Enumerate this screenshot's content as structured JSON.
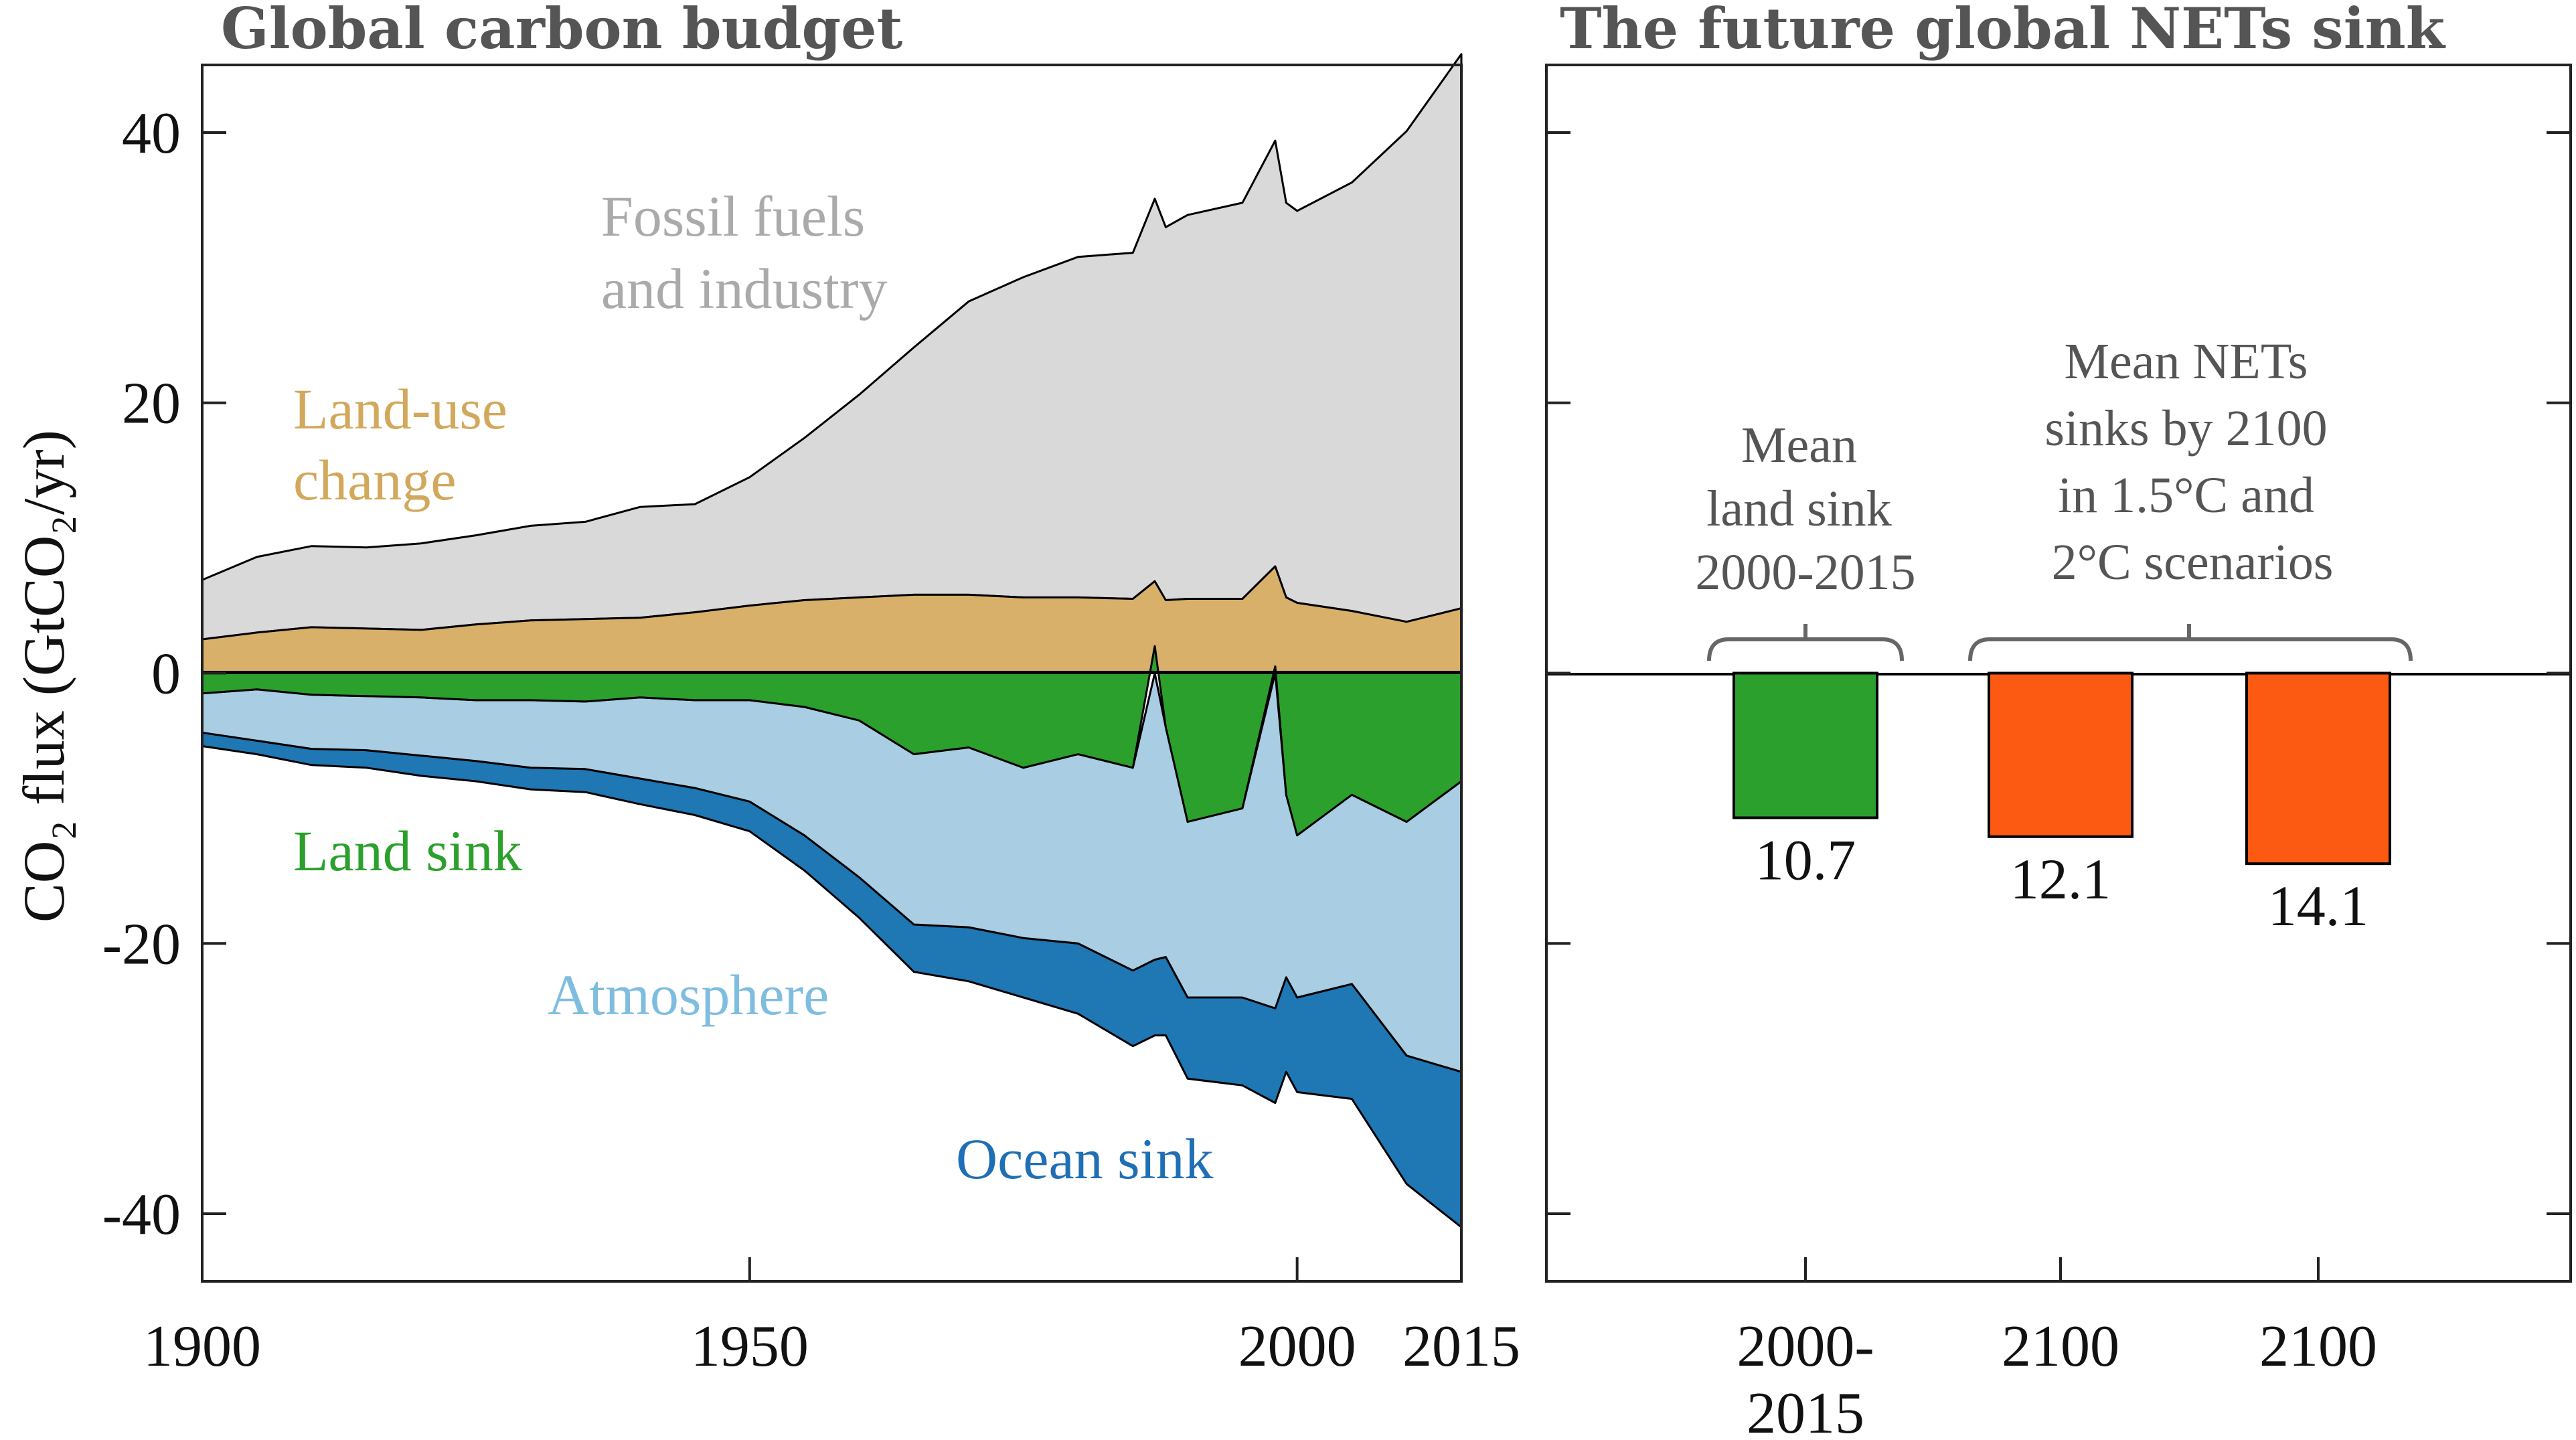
{
  "chart_data": [
    {
      "type": "area",
      "title": "Global carbon budget",
      "ylabel": "CO₂ flux (GtCO₂/yr)",
      "xlim": [
        1900,
        2015
      ],
      "ylim": [
        -45,
        45
      ],
      "xticks": [
        1900,
        1950,
        2000,
        2015
      ],
      "yticks": [
        40,
        20,
        0,
        -20,
        -40
      ],
      "annotations": {
        "fossil": [
          "Fossil fuels",
          "and industry"
        ],
        "landuse": [
          "Land-use",
          "change"
        ],
        "landsink": "Land sink",
        "atmosphere": "Atmosphere",
        "ocean": "Ocean sink"
      },
      "x": [
        1900,
        1905,
        1910,
        1915,
        1920,
        1925,
        1930,
        1935,
        1940,
        1945,
        1950,
        1955,
        1960,
        1965,
        1970,
        1975,
        1980,
        1985,
        1987,
        1988,
        1990,
        1995,
        1998,
        1999,
        2000,
        2005,
        2010,
        2015
      ],
      "series": [
        {
          "name": "Land-use change",
          "color": "#d9b06a",
          "values": [
            2.5,
            3.0,
            3.4,
            3.3,
            3.2,
            3.6,
            3.9,
            4.0,
            4.1,
            4.5,
            5.0,
            5.4,
            5.6,
            5.8,
            5.8,
            5.6,
            5.6,
            5.5,
            6.8,
            5.4,
            5.5,
            5.5,
            7.9,
            5.6,
            5.2,
            4.6,
            3.8,
            4.8
          ]
        },
        {
          "name": "Fossil fuels and industry",
          "color": "#d9d9d9",
          "values": [
            4.4,
            5.6,
            6.0,
            6.0,
            6.4,
            6.6,
            7.0,
            7.2,
            8.2,
            8.0,
            9.5,
            12.0,
            15.0,
            18.3,
            21.7,
            23.7,
            25.2,
            25.6,
            28.3,
            27.6,
            28.4,
            29.3,
            31.5,
            29.2,
            29.0,
            31.7,
            36.3,
            41.0
          ]
        },
        {
          "name": "Land sink",
          "color": "#2ca02c",
          "values": [
            -1.5,
            -1.2,
            -1.6,
            -1.7,
            -1.8,
            -2.0,
            -2.0,
            -2.1,
            -1.8,
            -2.0,
            -2.0,
            -2.5,
            -3.5,
            -6.0,
            -5.5,
            -7.0,
            -6.0,
            -7.0,
            2.0,
            -4.0,
            -11.0,
            -10.0,
            0.5,
            -9.0,
            -12.0,
            -9.0,
            -11.0,
            -8.0
          ]
        },
        {
          "name": "Atmosphere",
          "color": "#a9cee3",
          "values": [
            -2.9,
            -3.8,
            -4.0,
            -4.0,
            -4.3,
            -4.5,
            -5.0,
            -5.0,
            -6.0,
            -6.5,
            -7.5,
            -9.5,
            -11.6,
            -12.6,
            -13.3,
            -12.6,
            -14.0,
            -15.0,
            -21.2,
            -17.0,
            -13.0,
            -14.0,
            -24.8,
            -13.5,
            -12.0,
            -14.0,
            -17.3,
            -21.5
          ]
        },
        {
          "name": "Ocean sink",
          "color": "#1f77b4",
          "values": [
            -1.0,
            -1.0,
            -1.2,
            -1.3,
            -1.5,
            -1.5,
            -1.6,
            -1.7,
            -1.9,
            -2.0,
            -2.2,
            -2.6,
            -3.0,
            -3.5,
            -4.0,
            -4.4,
            -5.2,
            -5.6,
            -5.6,
            -5.8,
            -6.0,
            -6.5,
            -7.0,
            -7.0,
            -7.0,
            -8.5,
            -9.5,
            -11.5
          ]
        }
      ]
    },
    {
      "type": "bar",
      "title": "The future global NETs sink",
      "ylim": [
        -45,
        45
      ],
      "categories": [
        {
          "lines": [
            "2000-",
            "2015"
          ]
        },
        {
          "lines": [
            "2100"
          ]
        },
        {
          "lines": [
            "2100"
          ]
        }
      ],
      "values": [
        -10.7,
        -12.1,
        -14.1
      ],
      "value_labels": [
        "10.7",
        "12.1",
        "14.1"
      ],
      "colors": [
        "#2ca02c",
        "#fc5a12",
        "#fc5a12"
      ],
      "notes": {
        "land": [
          "Mean",
          "land sink",
          "2000-2015"
        ],
        "nets": [
          "Mean NETs",
          "sinks by 2100",
          "in 1.5°C and",
          "2°C scenarios"
        ]
      }
    }
  ]
}
